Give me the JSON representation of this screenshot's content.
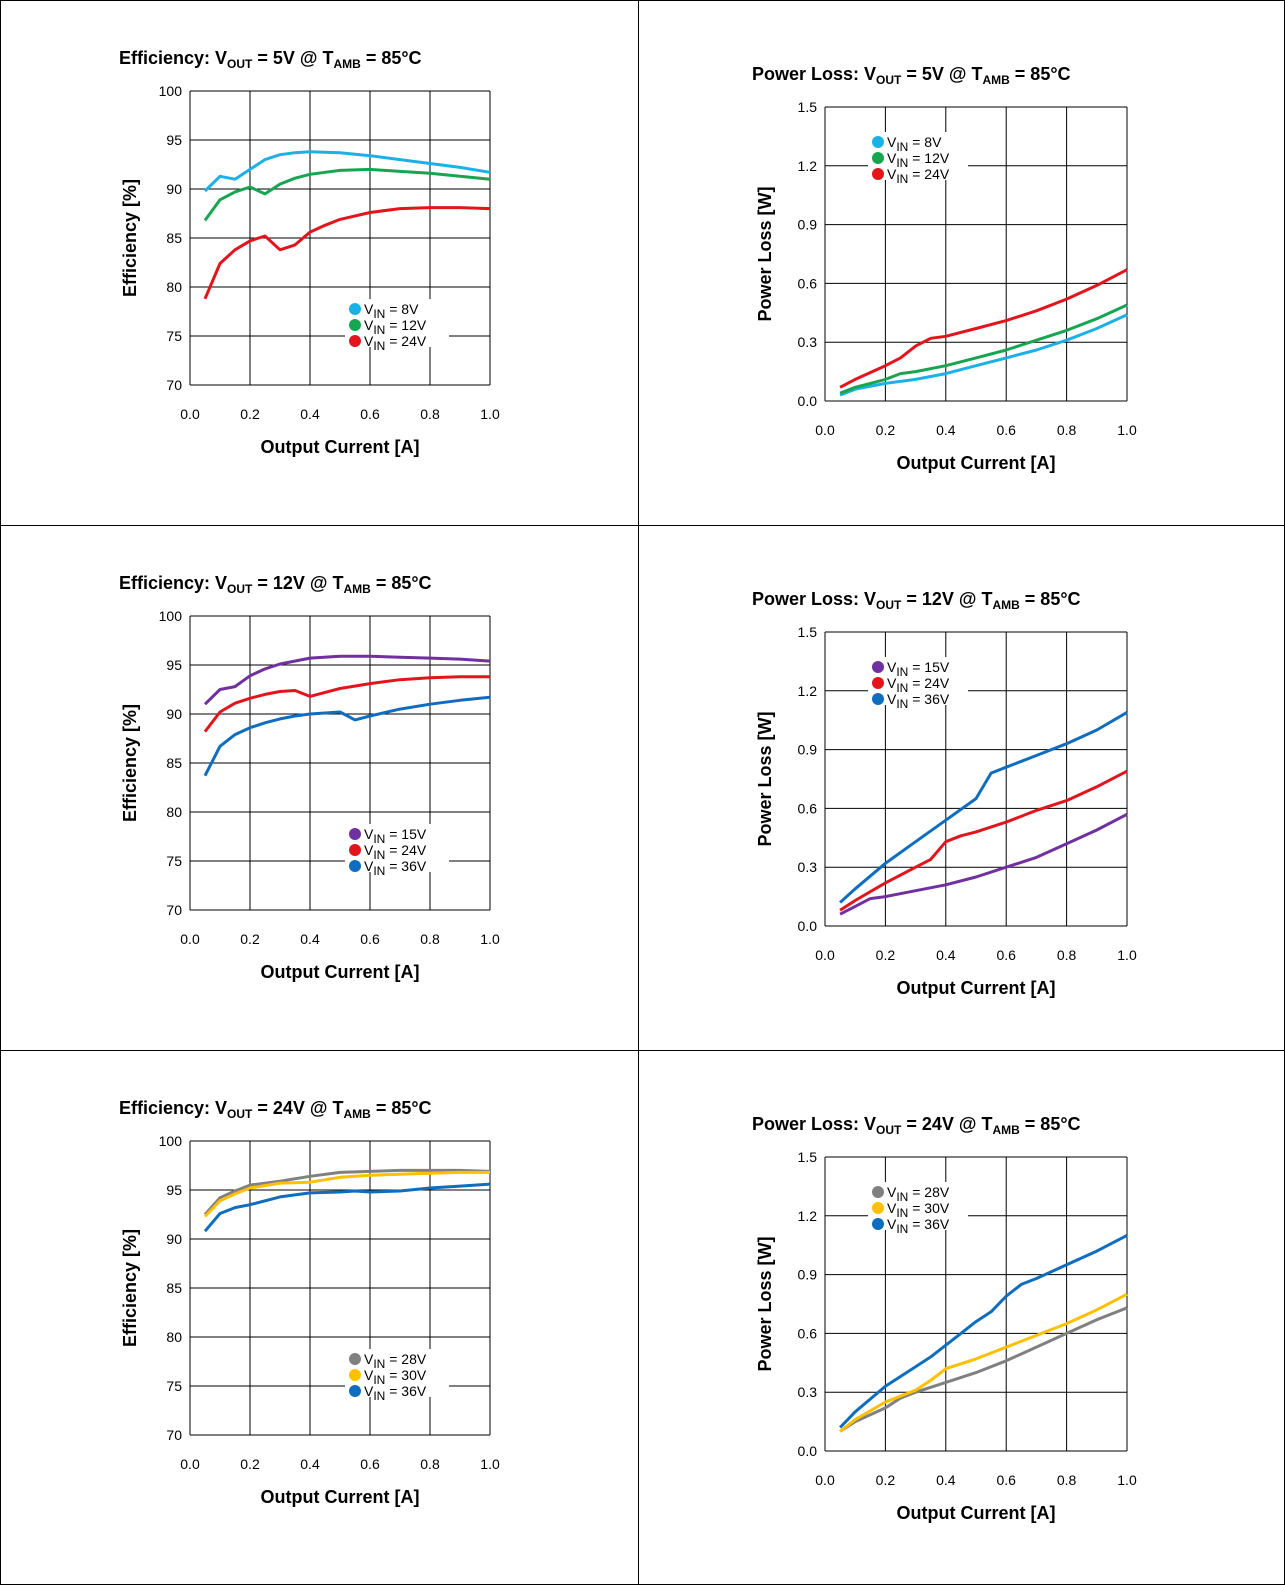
{
  "chart_data": [
    {
      "type": "line",
      "title": "Efficiency: VOUT = 5V @ TAMB = 85°C",
      "title_parts": [
        "Efficiency: V",
        "OUT",
        " = 5V @ T",
        "AMB",
        " = 85°C"
      ],
      "xlabel": "Output Current [A]",
      "ylabel": "Efficiency [%]",
      "xlim": [
        0.0,
        1.0
      ],
      "ylim": [
        70,
        100
      ],
      "xticks": [
        "0.0",
        "0.2",
        "0.4",
        "0.6",
        "0.8",
        "1.0"
      ],
      "yticks": [
        "70",
        "75",
        "80",
        "85",
        "90",
        "95",
        "100"
      ],
      "grid": true,
      "legend": "bottom-right",
      "series": [
        {
          "name": "VIN = 8V",
          "legend_parts": [
            "V",
            "IN",
            " = 8V"
          ],
          "color": "#1BB1E7",
          "x": [
            0.05,
            0.1,
            0.15,
            0.2,
            0.25,
            0.3,
            0.35,
            0.4,
            0.5,
            0.6,
            0.7,
            0.8,
            0.9,
            1.0
          ],
          "y": [
            89.8,
            91.3,
            91.0,
            92.0,
            93.0,
            93.5,
            93.7,
            93.8,
            93.7,
            93.4,
            93.0,
            92.6,
            92.2,
            91.7
          ]
        },
        {
          "name": "VIN = 12V",
          "legend_parts": [
            "V",
            "IN",
            " = 12V"
          ],
          "color": "#17A552",
          "x": [
            0.05,
            0.1,
            0.15,
            0.2,
            0.25,
            0.3,
            0.35,
            0.4,
            0.5,
            0.6,
            0.7,
            0.8,
            0.9,
            1.0
          ],
          "y": [
            86.8,
            88.9,
            89.7,
            90.2,
            89.5,
            90.5,
            91.1,
            91.5,
            91.9,
            92.0,
            91.8,
            91.6,
            91.3,
            91.0
          ]
        },
        {
          "name": "VIN = 24V",
          "legend_parts": [
            "V",
            "IN",
            " = 24V"
          ],
          "color": "#E3141B",
          "x": [
            0.05,
            0.1,
            0.15,
            0.2,
            0.25,
            0.3,
            0.35,
            0.4,
            0.45,
            0.5,
            0.6,
            0.7,
            0.8,
            0.9,
            1.0
          ],
          "y": [
            78.8,
            82.4,
            83.8,
            84.7,
            85.2,
            83.8,
            84.3,
            85.6,
            86.3,
            86.9,
            87.6,
            88.0,
            88.1,
            88.1,
            88.0
          ]
        }
      ]
    },
    {
      "type": "line",
      "title": "Power Loss: VOUT = 5V @ TAMB = 85°C",
      "title_parts": [
        "Power Loss: V",
        "OUT",
        " = 5V @ T",
        "AMB",
        " = 85°C"
      ],
      "xlabel": "Output Current [A]",
      "ylabel": "Power Loss [W]",
      "xlim": [
        0.0,
        1.0
      ],
      "ylim": [
        0.0,
        1.5
      ],
      "xticks": [
        "0.0",
        "0.2",
        "0.4",
        "0.6",
        "0.8",
        "1.0"
      ],
      "yticks": [
        "0.0",
        "0.3",
        "0.6",
        "0.9",
        "1.2",
        "1.5"
      ],
      "grid": true,
      "legend": "top-left",
      "series": [
        {
          "name": "VIN = 8V",
          "legend_parts": [
            "V",
            "IN",
            " = 8V"
          ],
          "color": "#1BB1E7",
          "x": [
            0.05,
            0.1,
            0.2,
            0.3,
            0.4,
            0.5,
            0.6,
            0.7,
            0.8,
            0.9,
            1.0
          ],
          "y": [
            0.03,
            0.06,
            0.09,
            0.11,
            0.14,
            0.18,
            0.22,
            0.26,
            0.31,
            0.37,
            0.44
          ]
        },
        {
          "name": "VIN = 12V",
          "legend_parts": [
            "V",
            "IN",
            " = 12V"
          ],
          "color": "#17A552",
          "x": [
            0.05,
            0.1,
            0.15,
            0.2,
            0.25,
            0.3,
            0.4,
            0.5,
            0.6,
            0.7,
            0.8,
            0.9,
            1.0
          ],
          "y": [
            0.04,
            0.07,
            0.09,
            0.11,
            0.14,
            0.15,
            0.18,
            0.22,
            0.26,
            0.31,
            0.36,
            0.42,
            0.49
          ]
        },
        {
          "name": "VIN = 24V",
          "legend_parts": [
            "V",
            "IN",
            " = 24V"
          ],
          "color": "#E3141B",
          "x": [
            0.05,
            0.1,
            0.2,
            0.25,
            0.3,
            0.35,
            0.4,
            0.5,
            0.6,
            0.7,
            0.8,
            0.9,
            1.0
          ],
          "y": [
            0.07,
            0.11,
            0.18,
            0.22,
            0.28,
            0.32,
            0.33,
            0.37,
            0.41,
            0.46,
            0.52,
            0.59,
            0.67
          ]
        }
      ]
    },
    {
      "type": "line",
      "title": "Efficiency: VOUT = 12V @ TAMB = 85°C",
      "title_parts": [
        "Efficiency: V",
        "OUT",
        " = 12V @ T",
        "AMB",
        " = 85°C"
      ],
      "xlabel": "Output Current [A]",
      "ylabel": "Efficiency [%]",
      "xlim": [
        0.0,
        1.0
      ],
      "ylim": [
        70,
        100
      ],
      "xticks": [
        "0.0",
        "0.2",
        "0.4",
        "0.6",
        "0.8",
        "1.0"
      ],
      "yticks": [
        "70",
        "75",
        "80",
        "85",
        "90",
        "95",
        "100"
      ],
      "grid": true,
      "legend": "bottom-right",
      "series": [
        {
          "name": "VIN = 15V",
          "legend_parts": [
            "V",
            "IN",
            " = 15V"
          ],
          "color": "#7030A0",
          "x": [
            0.05,
            0.1,
            0.15,
            0.2,
            0.25,
            0.3,
            0.4,
            0.5,
            0.6,
            0.7,
            0.8,
            0.9,
            1.0
          ],
          "y": [
            91.0,
            92.5,
            92.8,
            93.9,
            94.6,
            95.1,
            95.7,
            95.9,
            95.9,
            95.8,
            95.7,
            95.6,
            95.4
          ]
        },
        {
          "name": "VIN = 24V",
          "legend_parts": [
            "V",
            "IN",
            " = 24V"
          ],
          "color": "#E3141B",
          "x": [
            0.05,
            0.1,
            0.15,
            0.2,
            0.25,
            0.3,
            0.35,
            0.4,
            0.45,
            0.5,
            0.6,
            0.7,
            0.8,
            0.9,
            1.0
          ],
          "y": [
            88.2,
            90.2,
            91.1,
            91.6,
            92.0,
            92.3,
            92.4,
            91.8,
            92.2,
            92.6,
            93.1,
            93.5,
            93.7,
            93.8,
            93.8
          ]
        },
        {
          "name": "VIN = 36V",
          "legend_parts": [
            "V",
            "IN",
            " = 36V"
          ],
          "color": "#0F6DBF",
          "x": [
            0.05,
            0.1,
            0.15,
            0.2,
            0.25,
            0.3,
            0.35,
            0.4,
            0.45,
            0.5,
            0.55,
            0.6,
            0.7,
            0.8,
            0.9,
            1.0
          ],
          "y": [
            83.7,
            86.7,
            87.9,
            88.6,
            89.1,
            89.5,
            89.8,
            90.0,
            90.1,
            90.2,
            89.4,
            89.8,
            90.5,
            91.0,
            91.4,
            91.7
          ]
        }
      ]
    },
    {
      "type": "line",
      "title": "Power Loss: VOUT = 12V @ TAMB = 85°C",
      "title_parts": [
        "Power Loss: V",
        "OUT",
        " = 12V @ T",
        "AMB",
        " = 85°C"
      ],
      "xlabel": "Output Current [A]",
      "ylabel": "Power Loss [W]",
      "xlim": [
        0.0,
        1.0
      ],
      "ylim": [
        0.0,
        1.5
      ],
      "xticks": [
        "0.0",
        "0.2",
        "0.4",
        "0.6",
        "0.8",
        "1.0"
      ],
      "yticks": [
        "0.0",
        "0.3",
        "0.6",
        "0.9",
        "1.2",
        "1.5"
      ],
      "grid": true,
      "legend": "top-left",
      "series": [
        {
          "name": "VIN = 15V",
          "legend_parts": [
            "V",
            "IN",
            " = 15V"
          ],
          "color": "#7030A0",
          "x": [
            0.05,
            0.1,
            0.15,
            0.2,
            0.3,
            0.4,
            0.5,
            0.6,
            0.7,
            0.8,
            0.9,
            1.0
          ],
          "y": [
            0.06,
            0.1,
            0.14,
            0.15,
            0.18,
            0.21,
            0.25,
            0.3,
            0.35,
            0.42,
            0.49,
            0.57
          ]
        },
        {
          "name": "VIN = 24V",
          "legend_parts": [
            "V",
            "IN",
            " = 24V"
          ],
          "color": "#E3141B",
          "x": [
            0.05,
            0.1,
            0.2,
            0.3,
            0.35,
            0.4,
            0.45,
            0.5,
            0.6,
            0.7,
            0.8,
            0.9,
            1.0
          ],
          "y": [
            0.08,
            0.13,
            0.22,
            0.3,
            0.34,
            0.43,
            0.46,
            0.48,
            0.53,
            0.59,
            0.64,
            0.71,
            0.79
          ]
        },
        {
          "name": "VIN = 36V",
          "legend_parts": [
            "V",
            "IN",
            " = 36V"
          ],
          "color": "#0F6DBF",
          "x": [
            0.05,
            0.1,
            0.2,
            0.3,
            0.4,
            0.5,
            0.55,
            0.6,
            0.7,
            0.8,
            0.9,
            1.0
          ],
          "y": [
            0.12,
            0.19,
            0.32,
            0.43,
            0.54,
            0.65,
            0.78,
            0.81,
            0.87,
            0.93,
            1.0,
            1.09
          ]
        }
      ]
    },
    {
      "type": "line",
      "title": "Efficiency: VOUT = 24V @ TAMB = 85°C",
      "title_parts": [
        "Efficiency: V",
        "OUT",
        " = 24V @ T",
        "AMB",
        " = 85°C"
      ],
      "xlabel": "Output Current [A]",
      "ylabel": "Efficiency [%]",
      "xlim": [
        0.0,
        1.0
      ],
      "ylim": [
        70,
        100
      ],
      "xticks": [
        "0.0",
        "0.2",
        "0.4",
        "0.6",
        "0.8",
        "1.0"
      ],
      "yticks": [
        "70",
        "75",
        "80",
        "85",
        "90",
        "95",
        "100"
      ],
      "grid": true,
      "legend": "bottom-right",
      "series": [
        {
          "name": "VIN = 28V",
          "legend_parts": [
            "V",
            "IN",
            " = 28V"
          ],
          "color": "#808080",
          "x": [
            0.05,
            0.1,
            0.15,
            0.2,
            0.3,
            0.4,
            0.5,
            0.6,
            0.7,
            0.8,
            0.9,
            1.0
          ],
          "y": [
            92.5,
            94.2,
            94.9,
            95.5,
            95.9,
            96.4,
            96.8,
            96.9,
            97.0,
            97.0,
            97.0,
            96.9
          ]
        },
        {
          "name": "VIN = 30V",
          "legend_parts": [
            "V",
            "IN",
            " = 30V"
          ],
          "color": "#FFC000",
          "x": [
            0.05,
            0.1,
            0.15,
            0.2,
            0.3,
            0.4,
            0.5,
            0.6,
            0.7,
            0.8,
            0.9,
            1.0
          ],
          "y": [
            92.3,
            93.9,
            94.6,
            95.2,
            95.7,
            95.8,
            96.3,
            96.5,
            96.6,
            96.7,
            96.8,
            96.8
          ]
        },
        {
          "name": "VIN = 36V",
          "legend_parts": [
            "V",
            "IN",
            " = 36V"
          ],
          "color": "#0F6DBF",
          "x": [
            0.05,
            0.1,
            0.15,
            0.2,
            0.3,
            0.4,
            0.5,
            0.55,
            0.6,
            0.7,
            0.8,
            0.9,
            1.0
          ],
          "y": [
            90.8,
            92.6,
            93.2,
            93.5,
            94.3,
            94.7,
            94.8,
            94.9,
            94.8,
            94.9,
            95.2,
            95.4,
            95.6
          ]
        }
      ]
    },
    {
      "type": "line",
      "title": "Power Loss: VOUT = 24V @ TAMB = 85°C",
      "title_parts": [
        "Power Loss: V",
        "OUT",
        " = 24V @ T",
        "AMB",
        " = 85°C"
      ],
      "xlabel": "Output Current [A]",
      "ylabel": "Power Loss [W]",
      "xlim": [
        0.0,
        1.0
      ],
      "ylim": [
        0.0,
        1.5
      ],
      "xticks": [
        "0.0",
        "0.2",
        "0.4",
        "0.6",
        "0.8",
        "1.0"
      ],
      "yticks": [
        "0.0",
        "0.3",
        "0.6",
        "0.9",
        "1.2",
        "1.5"
      ],
      "grid": true,
      "legend": "top-left",
      "series": [
        {
          "name": "VIN = 28V",
          "legend_parts": [
            "V",
            "IN",
            " = 28V"
          ],
          "color": "#808080",
          "x": [
            0.05,
            0.1,
            0.2,
            0.25,
            0.3,
            0.4,
            0.5,
            0.6,
            0.7,
            0.8,
            0.9,
            1.0
          ],
          "y": [
            0.1,
            0.15,
            0.22,
            0.27,
            0.3,
            0.35,
            0.4,
            0.46,
            0.53,
            0.6,
            0.67,
            0.73
          ]
        },
        {
          "name": "VIN = 30V",
          "legend_parts": [
            "V",
            "IN",
            " = 30V"
          ],
          "color": "#FFC000",
          "x": [
            0.05,
            0.1,
            0.2,
            0.3,
            0.35,
            0.4,
            0.5,
            0.6,
            0.7,
            0.8,
            0.9,
            1.0
          ],
          "y": [
            0.1,
            0.16,
            0.25,
            0.31,
            0.36,
            0.42,
            0.47,
            0.53,
            0.59,
            0.65,
            0.72,
            0.8
          ]
        },
        {
          "name": "VIN = 36V",
          "legend_parts": [
            "V",
            "IN",
            " = 36V"
          ],
          "color": "#0F6DBF",
          "x": [
            0.05,
            0.1,
            0.2,
            0.25,
            0.3,
            0.35,
            0.4,
            0.45,
            0.5,
            0.55,
            0.6,
            0.65,
            0.7,
            0.8,
            0.9,
            1.0
          ],
          "y": [
            0.12,
            0.2,
            0.33,
            0.38,
            0.43,
            0.48,
            0.54,
            0.6,
            0.66,
            0.71,
            0.79,
            0.85,
            0.88,
            0.95,
            1.02,
            1.1
          ]
        }
      ]
    }
  ]
}
